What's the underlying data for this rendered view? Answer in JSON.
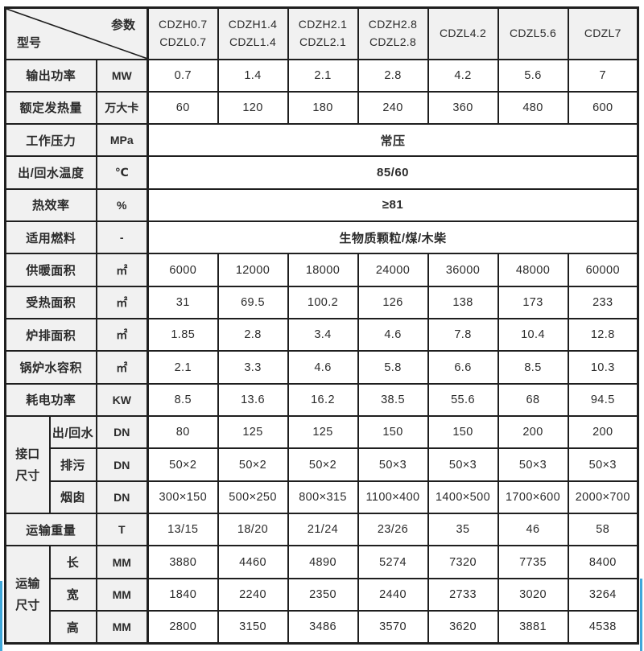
{
  "colors": {
    "accent_blue": "#3ea7da",
    "grid_line": "#1f1f1f",
    "header_bg": "#f1f1f1"
  },
  "table": {
    "corner": {
      "param_label": "参数",
      "model_label": "型号"
    },
    "model_columns": [
      [
        "CDZH0.7",
        "CDZL0.7"
      ],
      [
        "CDZH1.4",
        "CDZL1.4"
      ],
      [
        "CDZH2.1",
        "CDZL2.1"
      ],
      [
        "CDZH2.8",
        "CDZL2.8"
      ],
      [
        "CDZL4.2"
      ],
      [
        "CDZL5.6"
      ],
      [
        "CDZL7"
      ]
    ],
    "rows": [
      {
        "label": "输出功率",
        "unit": "MW",
        "values": [
          "0.7",
          "1.4",
          "2.1",
          "2.8",
          "4.2",
          "5.6",
          "7"
        ]
      },
      {
        "label": "额定发热量",
        "unit": "万大卡",
        "values": [
          "60",
          "120",
          "180",
          "240",
          "360",
          "480",
          "600"
        ]
      },
      {
        "label": "工作压力",
        "unit": "MPa",
        "merged": "常压"
      },
      {
        "label": "出/回水温度",
        "unit": "℃",
        "merged": "85/60"
      },
      {
        "label": "热效率",
        "unit": "%",
        "merged": "≥81"
      },
      {
        "label": "适用燃料",
        "unit": "-",
        "merged": "生物质颗粒/煤/木柴"
      },
      {
        "label": "供暖面积",
        "unit": "㎡",
        "values": [
          "6000",
          "12000",
          "18000",
          "24000",
          "36000",
          "48000",
          "60000"
        ]
      },
      {
        "label": "受热面积",
        "unit": "㎡",
        "values": [
          "31",
          "69.5",
          "100.2",
          "126",
          "138",
          "173",
          "233"
        ]
      },
      {
        "label": "炉排面积",
        "unit": "㎡",
        "values": [
          "1.85",
          "2.8",
          "3.4",
          "4.6",
          "7.8",
          "10.4",
          "12.8"
        ]
      },
      {
        "label": "锅炉水容积",
        "unit": "㎡",
        "values": [
          "2.1",
          "3.3",
          "4.6",
          "5.8",
          "6.6",
          "8.5",
          "10.3"
        ]
      },
      {
        "label": "耗电功率",
        "unit": "KW",
        "values": [
          "8.5",
          "13.6",
          "16.2",
          "38.5",
          "55.6",
          "68",
          "94.5"
        ]
      },
      {
        "group": {
          "label": "接口\n尺寸",
          "span": 3
        },
        "label": "出/回水",
        "unit": "DN",
        "values": [
          "80",
          "125",
          "125",
          "150",
          "150",
          "200",
          "200"
        ]
      },
      {
        "in_group": true,
        "label": "排污",
        "unit": "DN",
        "values": [
          "50×2",
          "50×2",
          "50×2",
          "50×3",
          "50×3",
          "50×3",
          "50×3"
        ]
      },
      {
        "in_group": true,
        "label": "烟囱",
        "unit": "DN",
        "values": [
          "300×150",
          "500×250",
          "800×315",
          "1100×400",
          "1400×500",
          "1700×600",
          "2000×700"
        ]
      },
      {
        "label": "运输重量",
        "unit": "T",
        "values": [
          "13/15",
          "18/20",
          "21/24",
          "23/26",
          "35",
          "46",
          "58"
        ]
      },
      {
        "group": {
          "label": "运输\n尺寸",
          "span": 3
        },
        "label": "长",
        "unit": "MM",
        "values": [
          "3880",
          "4460",
          "4890",
          "5274",
          "7320",
          "7735",
          "8400"
        ]
      },
      {
        "in_group": true,
        "label": "宽",
        "unit": "MM",
        "values": [
          "1840",
          "2240",
          "2350",
          "2440",
          "2733",
          "3020",
          "3264"
        ]
      },
      {
        "in_group": true,
        "label": "高",
        "unit": "MM",
        "values": [
          "2800",
          "3150",
          "3486",
          "3570",
          "3620",
          "3881",
          "4538"
        ]
      }
    ]
  }
}
